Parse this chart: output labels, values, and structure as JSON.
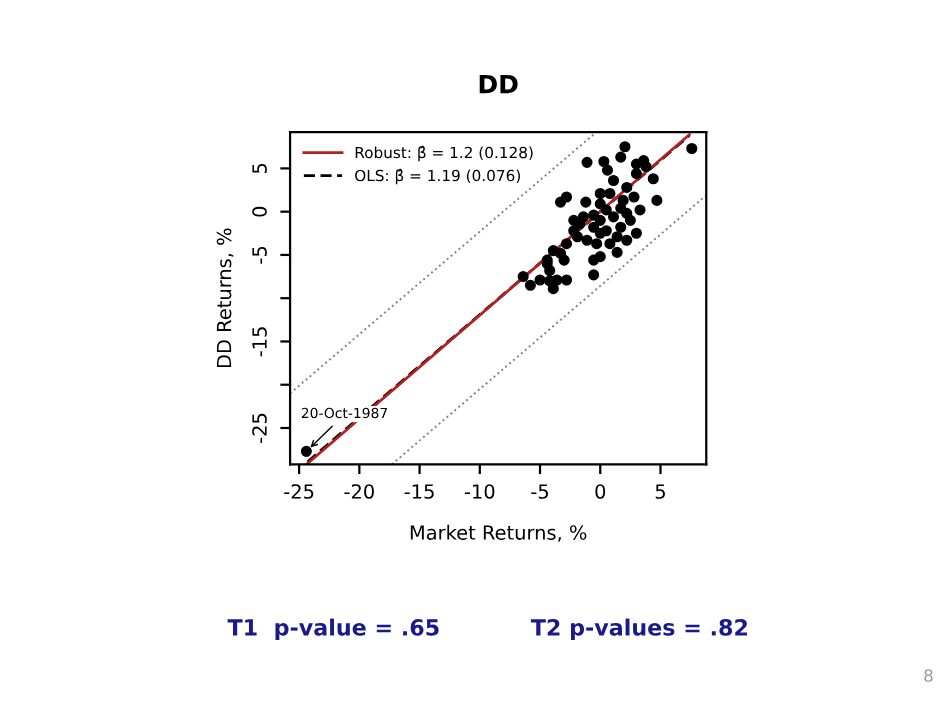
{
  "chart_data": {
    "type": "scatter",
    "title": "DD",
    "xlabel": "Market Returns, %",
    "ylabel": "DD Returns, %",
    "xlim": [
      -25.75,
      8.8
    ],
    "ylim": [
      -29.2,
      9.2
    ],
    "xticks": [
      -25,
      -20,
      -15,
      -10,
      -5,
      0,
      5
    ],
    "yticks": [
      5,
      0,
      -5,
      {
        "value": -10,
        "label": null
      },
      -15,
      {
        "value": -20,
        "label": null
      },
      -25
    ],
    "grid": false,
    "legend": "top left",
    "annotations": [
      {
        "text": "20-Oct-1987",
        "x": -24.4,
        "y": -27.7
      },
      "T1  p-value = .65",
      "T2 p-values = .82",
      "8"
    ],
    "series": [
      {
        "color": "#000000",
        "marker": "circle",
        "x": [
          -24.4,
          7.6,
          2.05,
          1.7,
          0.3,
          -1.1,
          3.6,
          3.8,
          3.0,
          4.4,
          4.7,
          0.6,
          1.1,
          2.2,
          2.8,
          0,
          -1.2,
          -3.3,
          -2.8,
          0.5,
          1.1,
          2.2,
          0,
          -0.55,
          -1.7,
          -2.2,
          0,
          1.7,
          1.4,
          2.2,
          1.4,
          0,
          -0.55,
          -1.1,
          -1.9,
          -2.8,
          -3.3,
          -3.9,
          -4.4,
          -3.0,
          -4.2,
          -3.6,
          -0.55,
          -2.8,
          -6.4,
          -5.8,
          -5.0,
          -4.2,
          -3.9,
          -4.4,
          0,
          0.8,
          1.9,
          3.0,
          3.3,
          -0.55,
          -1.4,
          1.7,
          2.5,
          0.5,
          0.8,
          -2.2,
          3.0,
          -0.3
        ],
        "values": [
          -27.7,
          7.3,
          7.5,
          6.3,
          5.8,
          5.7,
          5.9,
          5.2,
          4.4,
          3.8,
          1.3,
          4.8,
          3.6,
          2.8,
          1.7,
          2.1,
          1.1,
          1.1,
          1.7,
          0.2,
          -0.6,
          -0.2,
          -1.0,
          -1.8,
          -1.4,
          -2.2,
          -2.5,
          -1.8,
          -2.9,
          -3.3,
          -4.7,
          -5.2,
          -5.6,
          -3.3,
          -2.9,
          -3.7,
          -4.8,
          -4.5,
          -5.6,
          -5.6,
          -6.8,
          -7.9,
          -7.3,
          -7.9,
          -7.5,
          -8.5,
          -7.9,
          -8.0,
          -8.9,
          -6.0,
          0.9,
          2.1,
          1.3,
          5.5,
          0.2,
          -0.4,
          -0.6,
          0.4,
          -1.0,
          -2.2,
          -3.7,
          -1.0,
          -2.5,
          -3.7
        ]
      },
      {
        "type": "line",
        "name": "OLS: β̂ = 1.19 (0.076)",
        "color": "#000000",
        "line_style": "dashed",
        "x": [
          -24.3,
          7.4
        ],
        "values": [
          -28.9,
          8.8
        ]
      },
      {
        "type": "line",
        "name": "Robust: β̂ = 1.2 (0.128)",
        "color": "#b22222",
        "line_style": "solid",
        "x": [
          -24.3,
          7.4
        ],
        "values": [
          -29.1,
          8.9
        ]
      },
      {
        "type": "line",
        "color": "#808080",
        "line_style": "dotted",
        "x": [
          -25.75,
          -0.4
        ],
        "values": [
          -21.0,
          9.1
        ]
      },
      {
        "type": "line",
        "color": "#808080",
        "line_style": "dotted",
        "x": [
          -17.3,
          8.8
        ],
        "values": [
          -29.2,
          1.9
        ]
      }
    ]
  }
}
